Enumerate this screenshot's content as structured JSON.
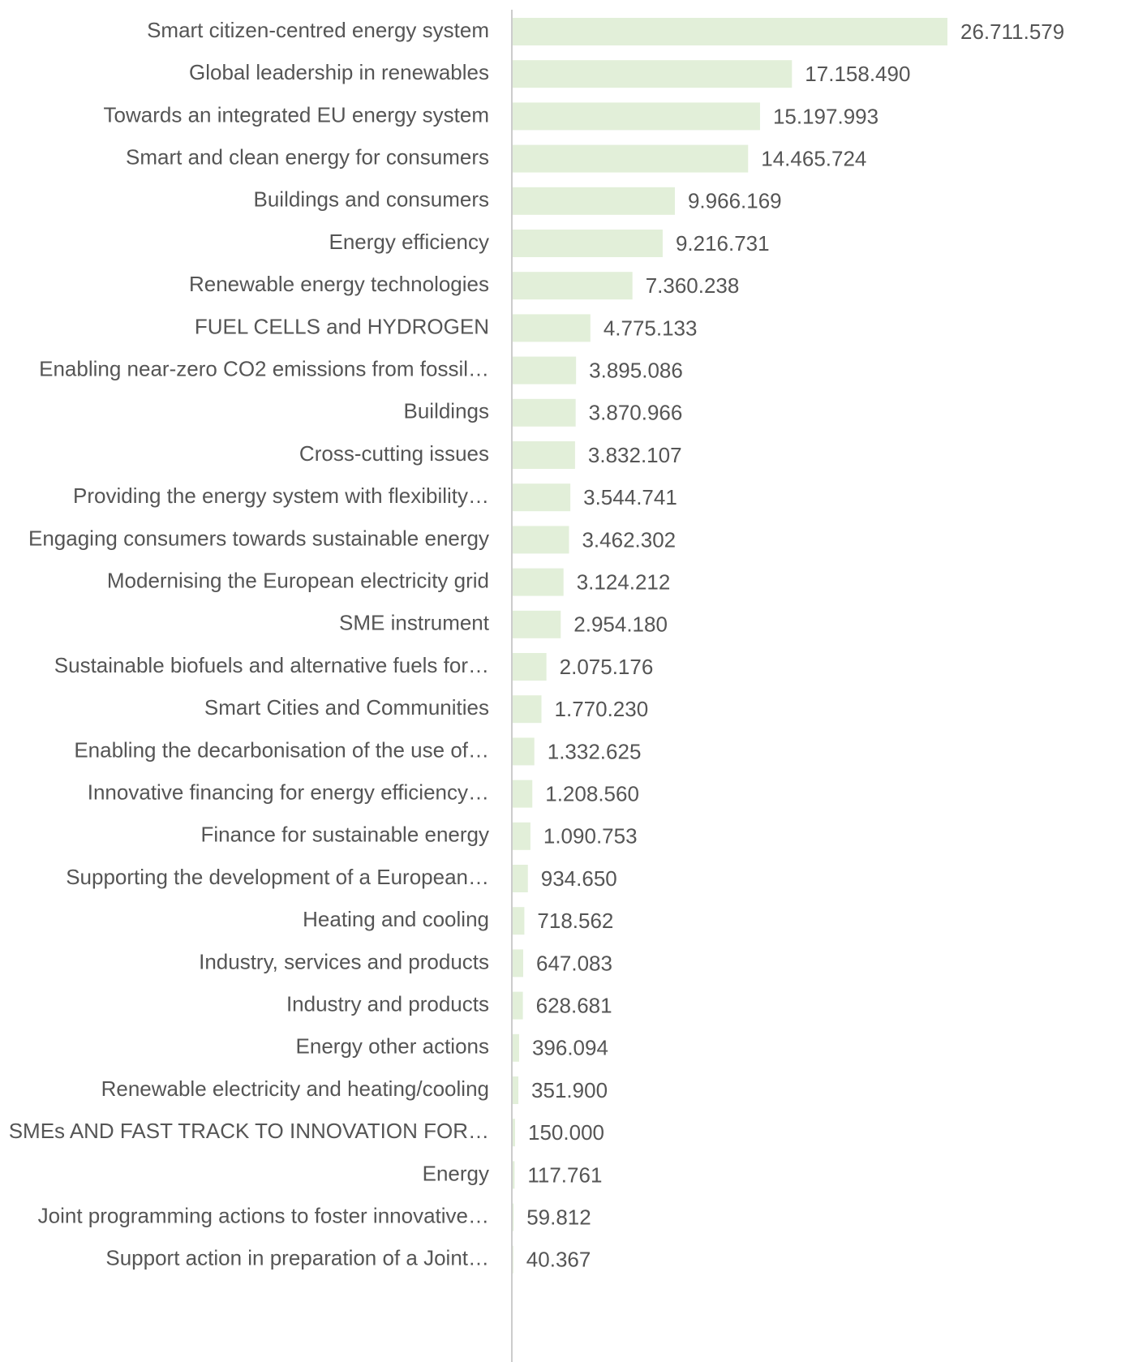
{
  "chart_data": {
    "type": "bar",
    "orientation": "horizontal",
    "color": "#e2efd9",
    "categories": [
      "Smart citizen-centred energy system",
      "Global leadership in renewables",
      "Towards an integrated EU energy system",
      "Smart and clean energy for consumers",
      "Buildings and consumers",
      "Energy efficiency",
      "Renewable energy technologies",
      "FUEL CELLS and HYDROGEN",
      "Enabling near-zero CO2 emissions from fossil…",
      "Buildings",
      "Cross-cutting issues",
      "Providing the energy system with flexibility…",
      "Engaging consumers towards sustainable energy",
      "Modernising the European electricity grid",
      "SME instrument",
      "Sustainable biofuels and alternative fuels for…",
      "Smart Cities and Communities",
      "Enabling the decarbonisation of the use of…",
      "Innovative financing for energy efficiency…",
      "Finance for sustainable energy",
      "Supporting the development of a European…",
      "Heating and cooling",
      "Industry, services and products",
      "Industry and products",
      "Energy other actions",
      "Renewable electricity and heating/cooling",
      "SMEs AND FAST TRACK TO INNOVATION FOR…",
      "Energy",
      "Joint programming actions to foster innovative…",
      "Support action in preparation of a Joint…"
    ],
    "values": [
      26711579,
      17158490,
      15197993,
      14465724,
      9966169,
      9216731,
      7360238,
      4775133,
      3895086,
      3870966,
      3832107,
      3544741,
      3462302,
      3124212,
      2954180,
      2075176,
      1770230,
      1332625,
      1208560,
      1090753,
      934650,
      718562,
      647083,
      628681,
      396094,
      351900,
      150000,
      117761,
      59812,
      40367
    ],
    "value_labels": [
      "26.711.579",
      "17.158.490",
      "15.197.993",
      "14.465.724",
      "9.966.169",
      "9.216.731",
      "7.360.238",
      "4.775.133",
      "3.895.086",
      "3.870.966",
      "3.832.107",
      "3.544.741",
      "3.462.302",
      "3.124.212",
      "2.954.180",
      "2.075.176",
      "1.770.230",
      "1.332.625",
      "1.208.560",
      "1.090.753",
      "934.650",
      "718.562",
      "647.083",
      "628.681",
      "396.094",
      "351.900",
      "150.000",
      "117.761",
      "59.812",
      "40.367"
    ]
  }
}
